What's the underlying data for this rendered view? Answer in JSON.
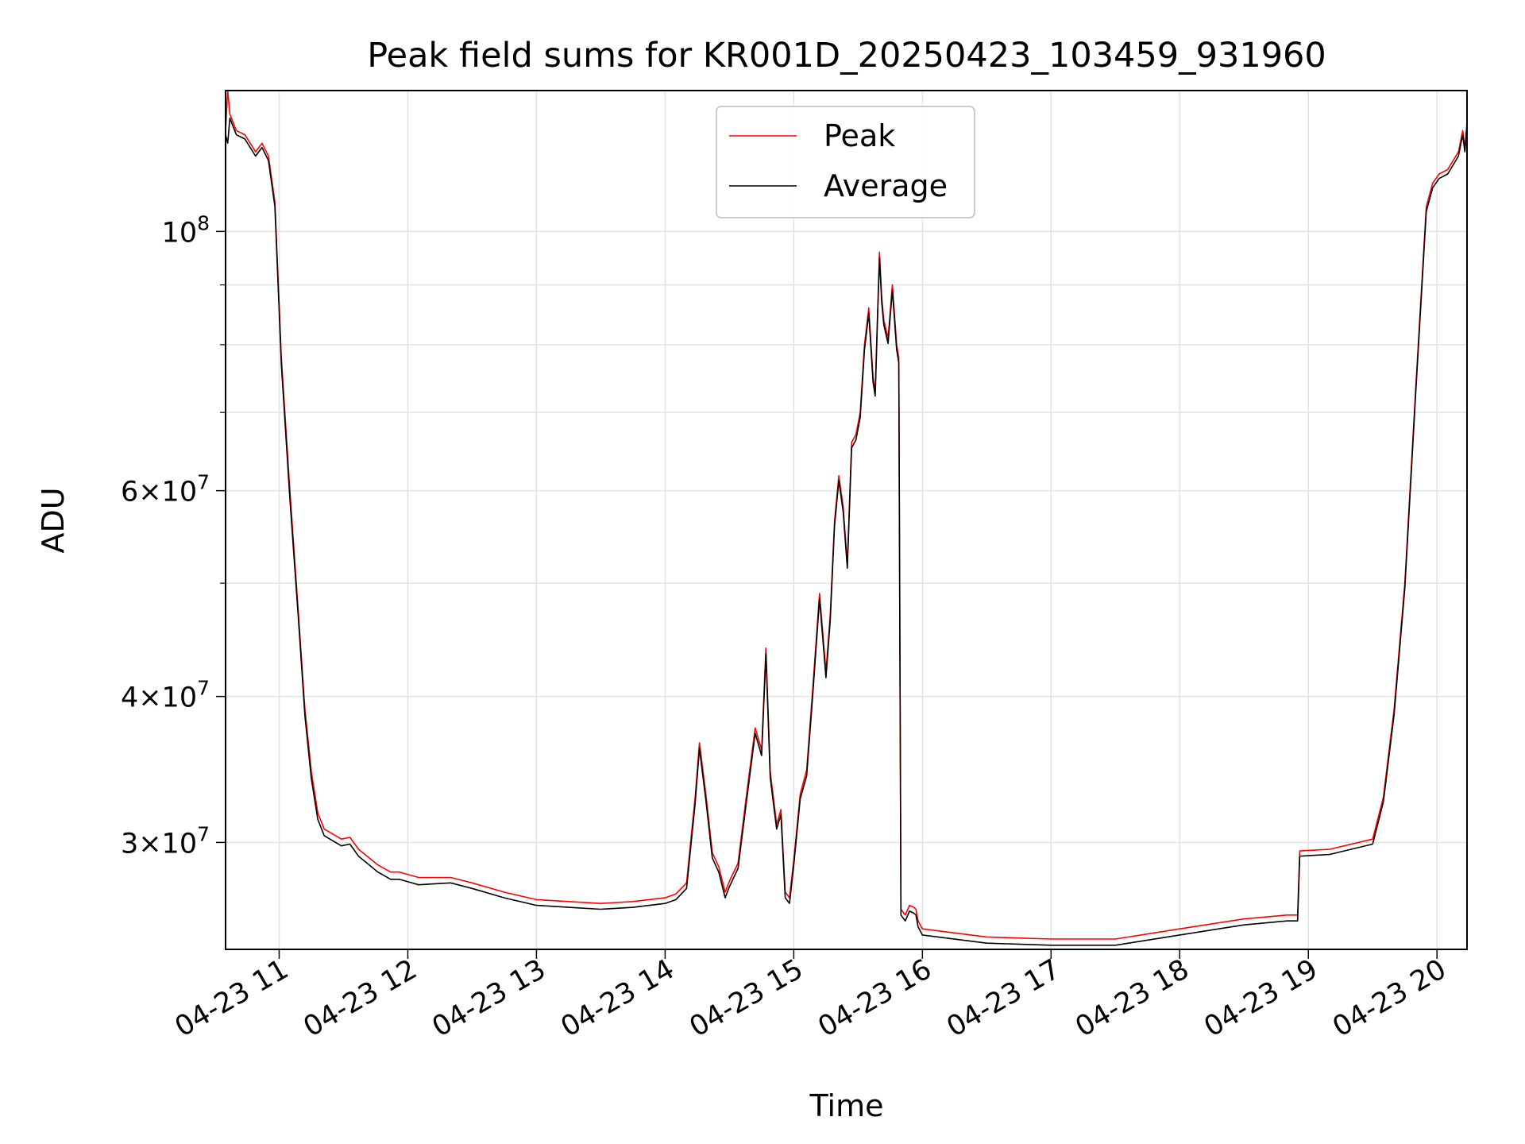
{
  "chart_data": {
    "type": "line",
    "title": "Peak field sums for KR001D_20250423_103459_931960",
    "xlabel": "Time",
    "ylabel": "ADU",
    "yscale": "log",
    "xlim": [
      "2025-04-23T10:35",
      "2025-04-23T20:14"
    ],
    "ylim": [
      24300000,
      132000000
    ],
    "grid": true,
    "legend_loc": "upper center",
    "x_tick_labels": [
      "04-23 11",
      "04-23 12",
      "04-23 13",
      "04-23 14",
      "04-23 15",
      "04-23 16",
      "04-23 17",
      "04-23 18",
      "04-23 19",
      "04-23 20"
    ],
    "x_tick_times": [
      "11:00",
      "12:00",
      "13:00",
      "14:00",
      "15:00",
      "16:00",
      "17:00",
      "18:00",
      "19:00",
      "20:00"
    ],
    "y_major_ticks": [
      {
        "value": 100000000,
        "mant": "10",
        "exp": "8"
      },
      {
        "value": 60000000,
        "mant": "6×10",
        "exp": "7"
      },
      {
        "value": 40000000,
        "mant": "4×10",
        "exp": "7"
      },
      {
        "value": 30000000,
        "mant": "3×10",
        "exp": "7"
      }
    ],
    "y_minor_ticks": [
      50000000,
      70000000,
      80000000,
      90000000
    ],
    "series": [
      {
        "name": "Peak",
        "color": "#ff0000",
        "x": [
          "10:35",
          "10:36",
          "10:37",
          "10:40",
          "10:44",
          "10:49",
          "10:52",
          "10:55",
          "10:58",
          "11:01",
          "11:05",
          "11:09",
          "11:12",
          "11:15",
          "11:18",
          "11:21",
          "11:25",
          "11:29",
          "11:33",
          "11:37",
          "11:42",
          "11:46",
          "11:52",
          "11:56",
          "12:05",
          "12:20",
          "12:30",
          "12:45",
          "13:00",
          "13:15",
          "13:30",
          "13:45",
          "14:00",
          "14:05",
          "14:10",
          "14:14",
          "14:16",
          "14:19",
          "14:22",
          "14:25",
          "14:28",
          "14:30",
          "14:34",
          "14:38",
          "14:42",
          "14:45",
          "14:47",
          "14:49",
          "14:52",
          "14:54",
          "14:56",
          "14:58",
          "15:00",
          "15:03",
          "15:06",
          "15:09",
          "15:12",
          "15:15",
          "15:17",
          "15:19",
          "15:21",
          "15:23",
          "15:25",
          "15:27",
          "15:29",
          "15:31",
          "15:33",
          "15:35",
          "15:37",
          "15:38",
          "15:39",
          "15:40",
          "15:41",
          "15:42",
          "15:44",
          "15:46",
          "15:48",
          "15:49",
          "15:50",
          "15:52",
          "15:54",
          "15:56",
          "15:57",
          "15:58",
          "16:00",
          "16:30",
          "17:00",
          "17:30",
          "18:00",
          "18:30",
          "18:50",
          "18:55",
          "18:56",
          "19:10",
          "19:30",
          "19:35",
          "19:40",
          "19:45",
          "19:50",
          "19:55",
          "19:58",
          "20:01",
          "20:05",
          "20:10",
          "20:12",
          "20:13",
          "20:14"
        ],
        "values": [
          122000000,
          132000000,
          126000000,
          122000000,
          121000000,
          117000000,
          119000000,
          116000000,
          106000000,
          78000000,
          60000000,
          47000000,
          39000000,
          34500000,
          31800000,
          30800000,
          30500000,
          30200000,
          30300000,
          29600000,
          29100000,
          28700000,
          28300000,
          28300000,
          28000000,
          28000000,
          27700000,
          27200000,
          26800000,
          26700000,
          26600000,
          26700000,
          26900000,
          27100000,
          27700000,
          32800000,
          36500000,
          33000000,
          29400000,
          28600000,
          27200000,
          27800000,
          28800000,
          33000000,
          37600000,
          36000000,
          44000000,
          34500000,
          31100000,
          32000000,
          27200000,
          26900000,
          29000000,
          33000000,
          34600000,
          41000000,
          49000000,
          42000000,
          47000000,
          56500000,
          61800000,
          58200000,
          52000000,
          66000000,
          67000000,
          70000000,
          80000000,
          86000000,
          75000000,
          73000000,
          84000000,
          96000000,
          88000000,
          84000000,
          81000000,
          90000000,
          80000000,
          78000000,
          26300000,
          26000000,
          26500000,
          26400000,
          26300000,
          25700000,
          25300000,
          24900000,
          24800000,
          24800000,
          25300000,
          25800000,
          26000000,
          26000000,
          29500000,
          29600000,
          30200000,
          32800000,
          39000000,
          50000000,
          73000000,
          105000000,
          110000000,
          112000000,
          113000000,
          117000000,
          122000000,
          118000000,
          124000000
        ]
      },
      {
        "name": "Average",
        "color": "#000000",
        "x": [
          "10:35",
          "10:36",
          "10:37",
          "10:40",
          "10:44",
          "10:49",
          "10:52",
          "10:55",
          "10:58",
          "11:01",
          "11:05",
          "11:09",
          "11:12",
          "11:15",
          "11:18",
          "11:21",
          "11:25",
          "11:29",
          "11:33",
          "11:37",
          "11:42",
          "11:46",
          "11:52",
          "11:56",
          "12:05",
          "12:20",
          "12:30",
          "12:45",
          "13:00",
          "13:15",
          "13:30",
          "13:45",
          "14:00",
          "14:05",
          "14:10",
          "14:14",
          "14:16",
          "14:19",
          "14:22",
          "14:25",
          "14:28",
          "14:30",
          "14:34",
          "14:38",
          "14:42",
          "14:45",
          "14:47",
          "14:49",
          "14:52",
          "14:54",
          "14:56",
          "14:58",
          "15:00",
          "15:03",
          "15:06",
          "15:09",
          "15:12",
          "15:15",
          "15:17",
          "15:19",
          "15:21",
          "15:23",
          "15:25",
          "15:27",
          "15:29",
          "15:31",
          "15:33",
          "15:35",
          "15:37",
          "15:38",
          "15:39",
          "15:40",
          "15:41",
          "15:42",
          "15:44",
          "15:46",
          "15:48",
          "15:49",
          "15:50",
          "15:52",
          "15:54",
          "15:56",
          "15:57",
          "15:58",
          "16:00",
          "16:30",
          "17:00",
          "17:30",
          "18:00",
          "18:30",
          "18:50",
          "18:55",
          "18:56",
          "19:10",
          "19:30",
          "19:35",
          "19:40",
          "19:45",
          "19:50",
          "19:55",
          "19:58",
          "20:01",
          "20:05",
          "20:10",
          "20:12",
          "20:13",
          "20:14"
        ],
        "values": [
          121000000,
          119000000,
          125000000,
          121000000,
          120000000,
          116000000,
          118000000,
          115000000,
          105000000,
          77000000,
          59000000,
          46500000,
          38500000,
          34000000,
          31400000,
          30400000,
          30100000,
          29800000,
          29900000,
          29200000,
          28700000,
          28300000,
          27900000,
          27900000,
          27600000,
          27700000,
          27400000,
          26900000,
          26500000,
          26400000,
          26300000,
          26400000,
          26600000,
          26800000,
          27400000,
          32400000,
          36100000,
          32600000,
          29100000,
          28300000,
          26900000,
          27500000,
          28500000,
          32600000,
          37200000,
          35600000,
          43500000,
          34100000,
          30800000,
          31700000,
          26900000,
          26600000,
          28700000,
          32700000,
          34200000,
          40500000,
          48500000,
          41500000,
          46500000,
          56000000,
          61200000,
          57600000,
          51500000,
          65300000,
          66300000,
          69300000,
          79200000,
          85100000,
          74300000,
          72300000,
          83200000,
          95000000,
          87100000,
          83200000,
          80200000,
          89100000,
          79200000,
          77200000,
          26000000,
          25700000,
          26200000,
          26100000,
          26000000,
          25400000,
          25000000,
          24600000,
          24500000,
          24500000,
          25000000,
          25500000,
          25700000,
          25700000,
          29200000,
          29300000,
          29900000,
          32500000,
          38600000,
          49500000,
          72300000,
          104000000,
          109000000,
          111000000,
          112000000,
          116000000,
          121000000,
          117000000,
          123000000
        ]
      }
    ]
  }
}
